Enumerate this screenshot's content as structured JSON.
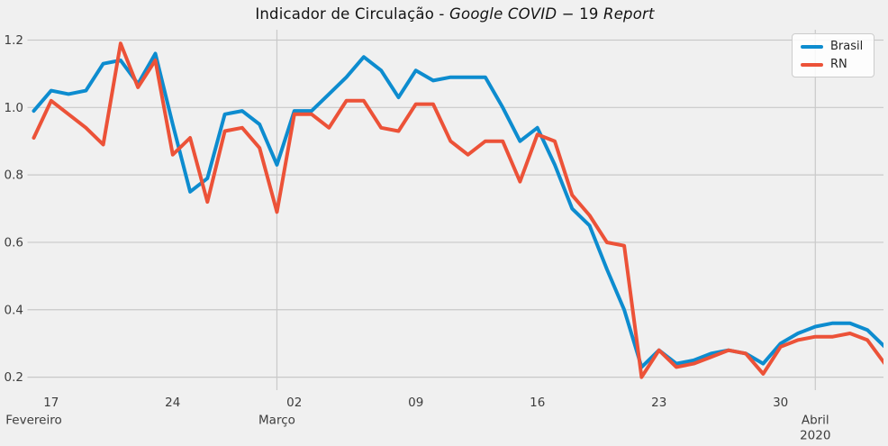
{
  "title": {
    "prefix": "Indicador de Circulação - ",
    "math_italic_1": "Google COVID",
    "math_minus": " − ",
    "math_upright": "19",
    "math_italic_2": " Report"
  },
  "legend": {
    "items": [
      {
        "label": "Brasil"
      },
      {
        "label": "RN"
      }
    ]
  },
  "chart_data": {
    "type": "line",
    "title": "Indicador de Circulação - Google COVID−19 Report",
    "x": [
      "2020-02-16",
      "2020-02-17",
      "2020-02-18",
      "2020-02-19",
      "2020-02-20",
      "2020-02-21",
      "2020-02-22",
      "2020-02-23",
      "2020-02-24",
      "2020-02-25",
      "2020-02-26",
      "2020-02-27",
      "2020-02-28",
      "2020-02-29",
      "2020-03-01",
      "2020-03-02",
      "2020-03-03",
      "2020-03-04",
      "2020-03-05",
      "2020-03-06",
      "2020-03-07",
      "2020-03-08",
      "2020-03-09",
      "2020-03-10",
      "2020-03-11",
      "2020-03-12",
      "2020-03-13",
      "2020-03-14",
      "2020-03-15",
      "2020-03-16",
      "2020-03-17",
      "2020-03-18",
      "2020-03-19",
      "2020-03-20",
      "2020-03-21",
      "2020-03-22",
      "2020-03-23",
      "2020-03-24",
      "2020-03-25",
      "2020-03-26",
      "2020-03-27",
      "2020-03-28",
      "2020-03-29",
      "2020-03-30",
      "2020-03-31",
      "2020-04-01",
      "2020-04-02",
      "2020-04-03",
      "2020-04-04",
      "2020-04-05"
    ],
    "series": [
      {
        "name": "Brasil",
        "color": "#0d8ccf",
        "values": [
          0.99,
          1.05,
          1.04,
          1.05,
          1.13,
          1.14,
          1.07,
          1.16,
          0.95,
          0.75,
          0.79,
          0.98,
          0.99,
          0.95,
          0.83,
          0.99,
          0.99,
          1.04,
          1.09,
          1.15,
          1.11,
          1.03,
          1.11,
          1.08,
          1.09,
          1.09,
          1.09,
          1.0,
          0.9,
          0.94,
          0.83,
          0.7,
          0.65,
          0.52,
          0.4,
          0.23,
          0.28,
          0.24,
          0.25,
          0.27,
          0.28,
          0.27,
          0.24,
          0.3,
          0.33,
          0.35,
          0.36,
          0.36,
          0.34,
          0.29
        ]
      },
      {
        "name": "RN",
        "color": "#ec5238",
        "values": [
          0.91,
          1.02,
          0.98,
          0.94,
          0.89,
          1.19,
          1.06,
          1.14,
          0.86,
          0.91,
          0.72,
          0.93,
          0.94,
          0.88,
          0.69,
          0.98,
          0.98,
          0.94,
          1.02,
          1.02,
          0.94,
          0.93,
          1.01,
          1.01,
          0.9,
          0.86,
          0.9,
          0.9,
          0.78,
          0.92,
          0.9,
          0.74,
          0.68,
          0.6,
          0.59,
          0.2,
          0.28,
          0.23,
          0.24,
          0.26,
          0.28,
          0.27,
          0.21,
          0.29,
          0.31,
          0.32,
          0.32,
          0.33,
          0.31,
          0.24
        ]
      }
    ],
    "x_ticks": [
      {
        "label": "17",
        "index": 1
      },
      {
        "label": "24",
        "index": 8
      },
      {
        "label": "02",
        "index": 15
      },
      {
        "label": "09",
        "index": 22
      },
      {
        "label": "16",
        "index": 29
      },
      {
        "label": "23",
        "index": 36
      },
      {
        "label": "30",
        "index": 43
      }
    ],
    "month_labels": [
      {
        "label": "Fevereiro",
        "index": 0,
        "sub": ""
      },
      {
        "label": "Março",
        "index": 14,
        "sub": ""
      },
      {
        "label": "Abril",
        "index": 45,
        "sub": "2020"
      }
    ],
    "grid_vertical_indices": [
      14,
      45
    ],
    "y_ticks": [
      "0.2",
      "0.4",
      "0.6",
      "0.8",
      "1.0",
      "1.2"
    ],
    "ylim": [
      0.16,
      1.23
    ],
    "grid": true,
    "legend_position": "upper right",
    "background_color": "#f0f0f0",
    "grid_color": "#c9c9c9",
    "tick_color": "#3d3d3d"
  }
}
